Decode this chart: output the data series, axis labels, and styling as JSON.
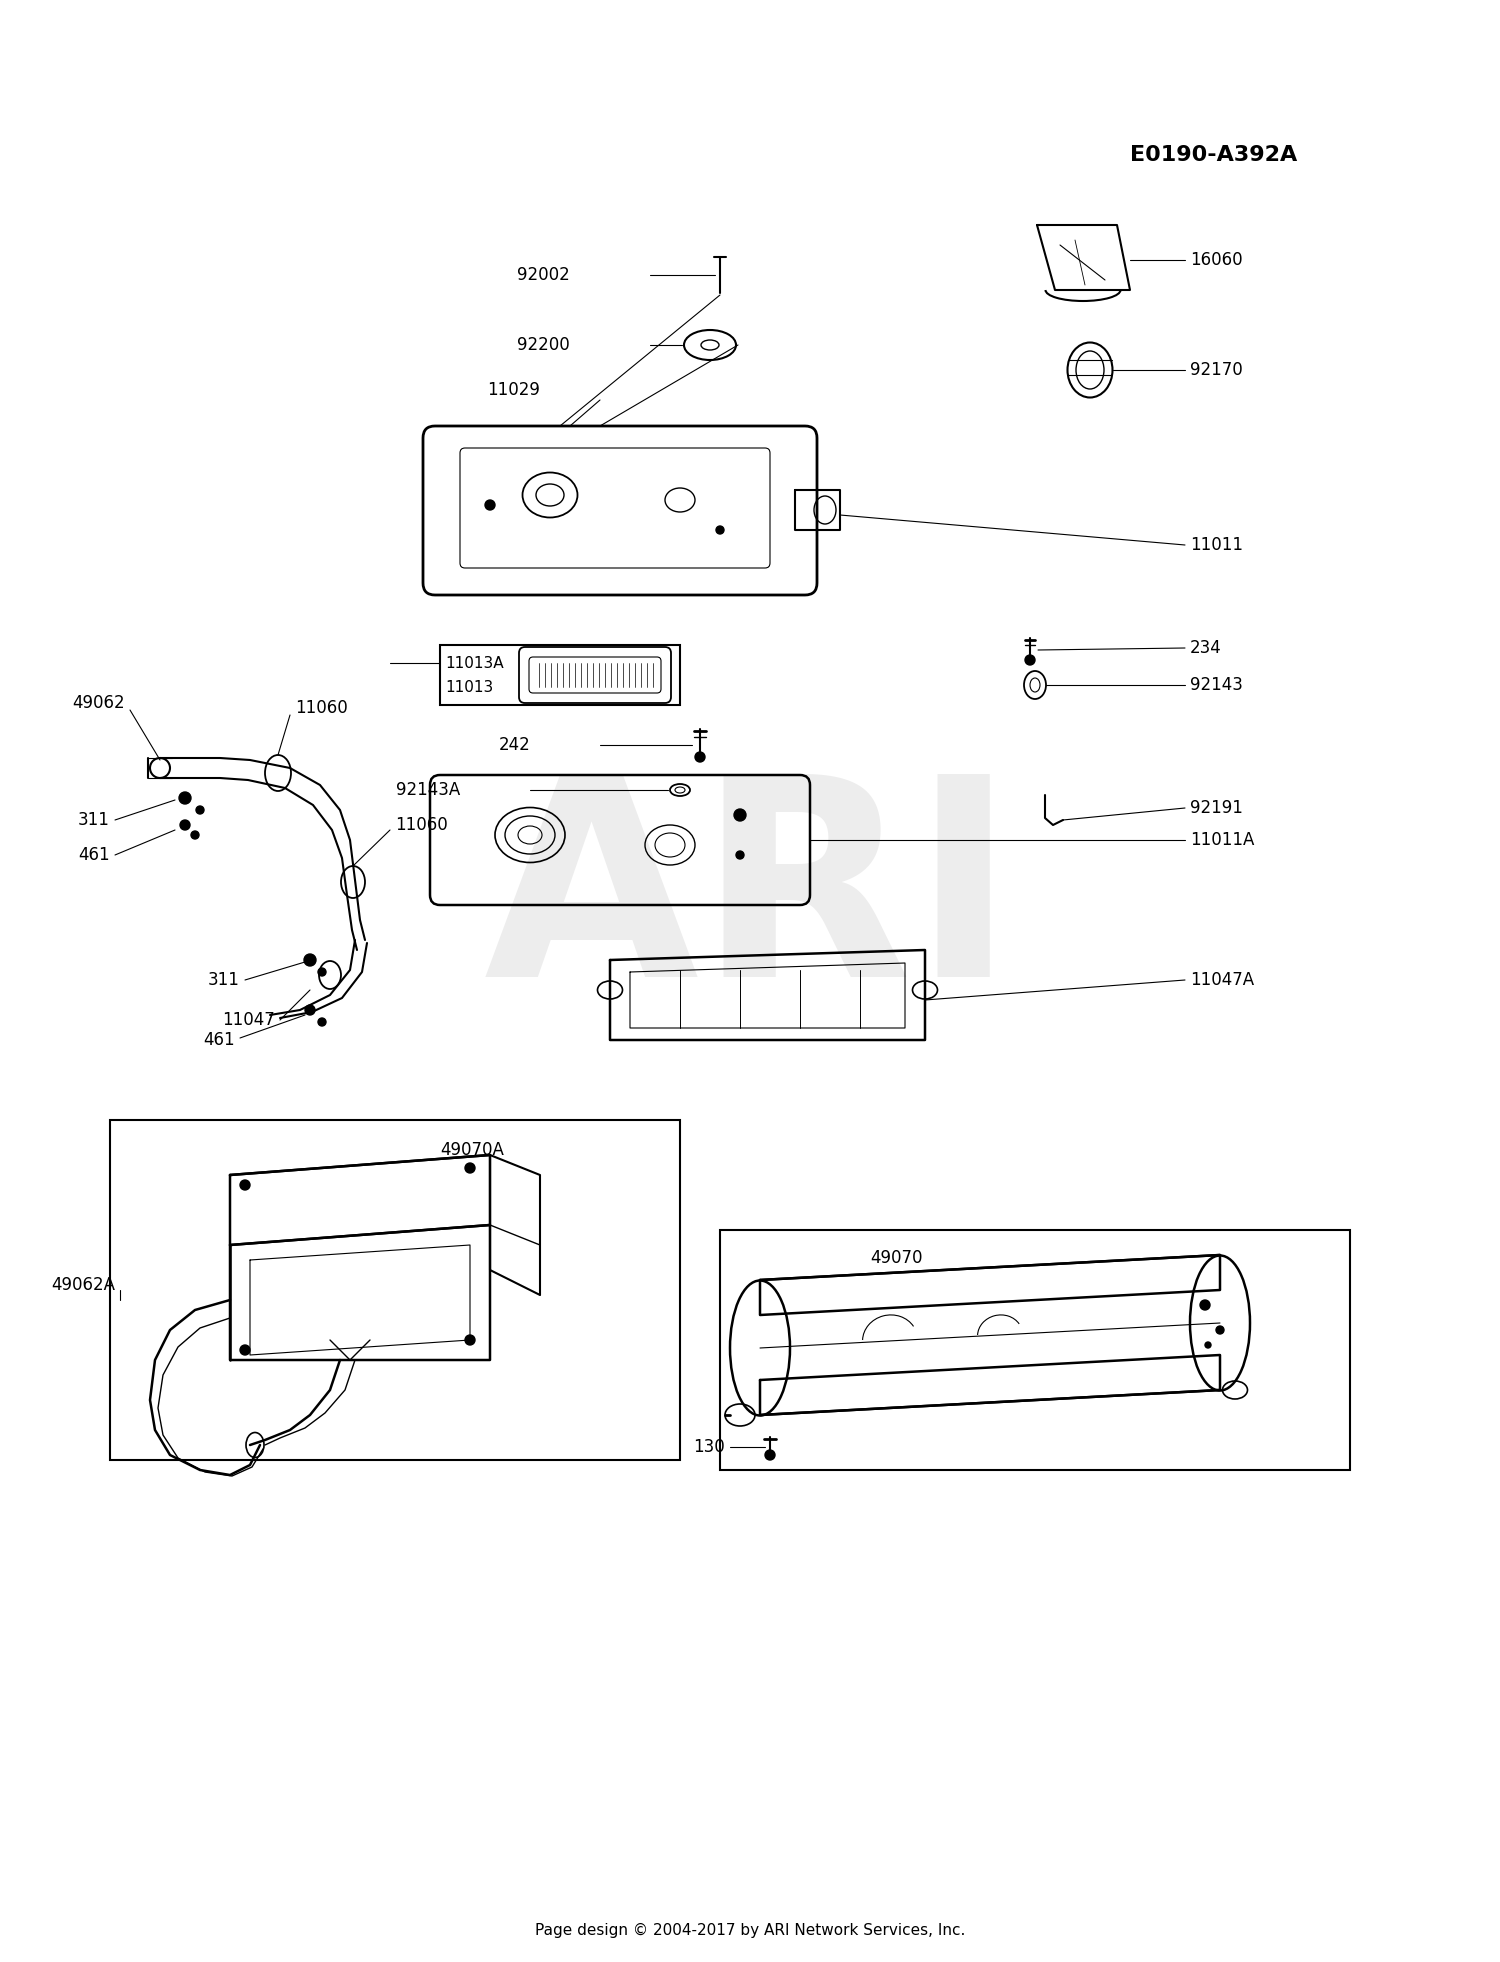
{
  "background_color": "#ffffff",
  "diagram_id": "E0190-A392A",
  "footer_text": "Page design © 2004-2017 by ARI Network Services, Inc.",
  "watermark": "ARI",
  "fig_w": 15.0,
  "fig_h": 19.62,
  "dpi": 100
}
